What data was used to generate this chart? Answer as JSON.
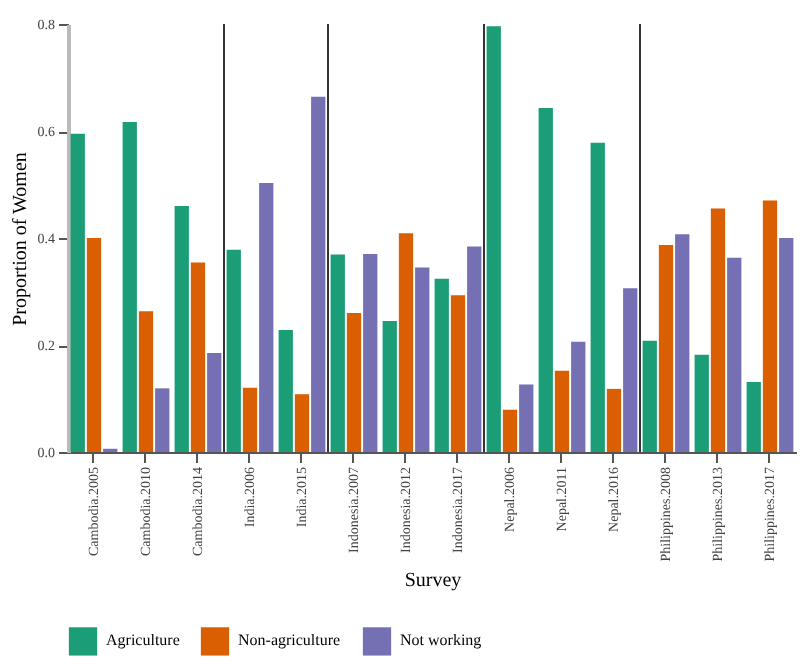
{
  "chart_data": {
    "type": "bar",
    "xlabel": "Survey",
    "ylabel": "Proportion of Women",
    "categories": [
      "Cambodia.2005",
      "Cambodia.2010",
      "Cambodia.2014",
      "India.2006",
      "India.2015",
      "Indonesia.2007",
      "Indonesia.2012",
      "Indonesia.2017",
      "Nepal.2006",
      "Nepal.2011",
      "Nepal.2016",
      "Philippines.2008",
      "Philippines.2013",
      "Philippines.2017"
    ],
    "series": [
      {
        "name": "Agriculture",
        "color": "#1b9e77",
        "values": [
          0.595,
          0.617,
          0.46,
          0.378,
          0.228,
          0.369,
          0.245,
          0.324,
          0.796,
          0.643,
          0.578,
          0.208,
          0.182,
          0.131
        ]
      },
      {
        "name": "Non-agriculture",
        "color": "#d95f02",
        "values": [
          0.4,
          0.263,
          0.354,
          0.12,
          0.108,
          0.26,
          0.409,
          0.293,
          0.079,
          0.152,
          0.118,
          0.387,
          0.455,
          0.47
        ]
      },
      {
        "name": "Not working",
        "color": "#7570b3",
        "values": [
          0.006,
          0.119,
          0.185,
          0.503,
          0.664,
          0.37,
          0.345,
          0.384,
          0.126,
          0.206,
          0.306,
          0.407,
          0.363,
          0.4
        ]
      }
    ],
    "ylim": [
      0,
      0.8
    ],
    "yticks": [
      {
        "value": 0,
        "label": "0.0"
      },
      {
        "value": 0.2,
        "label": "0.2"
      },
      {
        "value": 0.4,
        "label": "0.4"
      },
      {
        "value": 0.6,
        "label": "0.6"
      },
      {
        "value": 0.8,
        "label": "0.8"
      }
    ],
    "legend": "bottom",
    "grid": false
  }
}
